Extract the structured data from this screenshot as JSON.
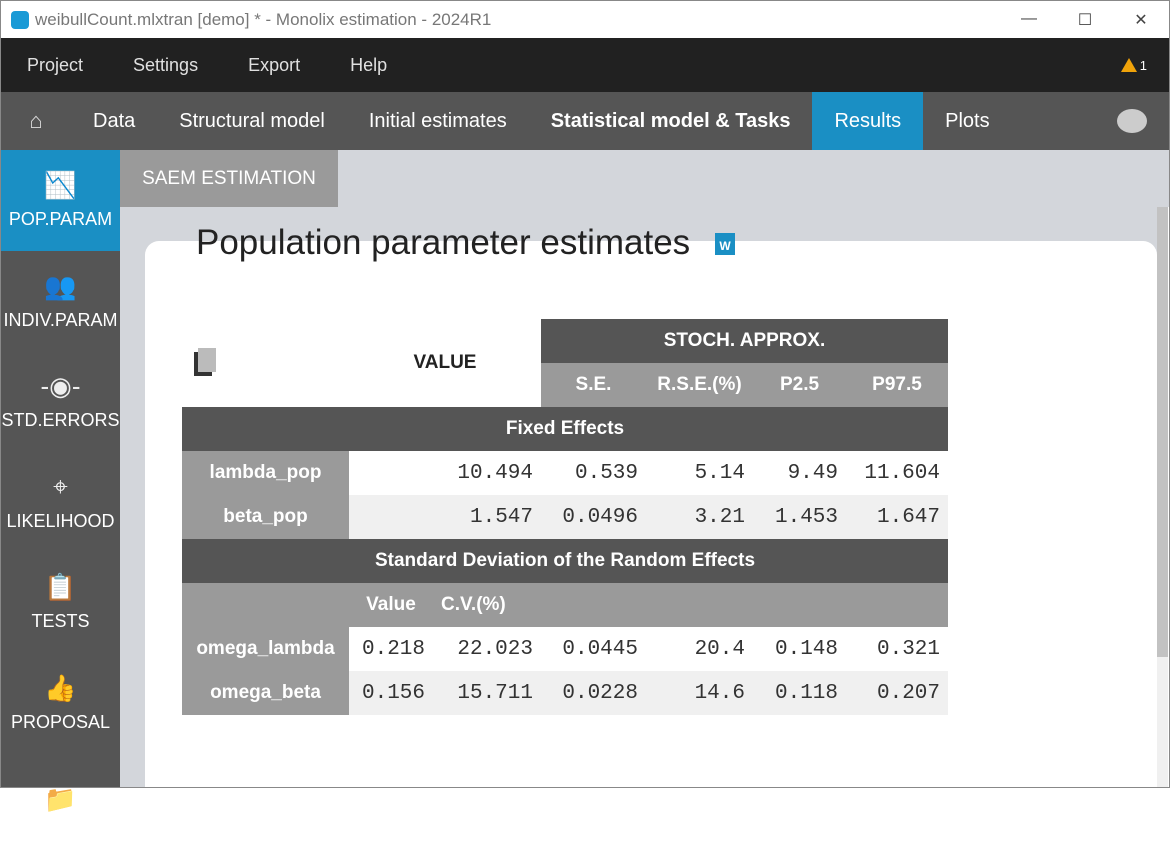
{
  "window": {
    "title": "weibullCount.mlxtran [demo] * - Monolix estimation - 2024R1",
    "controls": [
      "—",
      "☐",
      "✕"
    ]
  },
  "menu": [
    "Project",
    "Settings",
    "Export",
    "Help"
  ],
  "warning_count": "1",
  "nav": {
    "tabs": [
      "Data",
      "Structural model",
      "Initial estimates",
      "Statistical model & Tasks",
      "Results",
      "Plots"
    ],
    "active": "Results"
  },
  "sidebar": [
    {
      "label": "POP.PARAM",
      "icon": "chart-icon"
    },
    {
      "label": "INDIV.PARAM",
      "icon": "users-icon"
    },
    {
      "label": "STD.ERRORS",
      "icon": "errorbar-icon"
    },
    {
      "label": "LIKELIHOOD",
      "icon": "target-icon"
    },
    {
      "label": "TESTS",
      "icon": "clipboard-icon"
    },
    {
      "label": "PROPOSAL",
      "icon": "thumbs-up-icon"
    }
  ],
  "subtab": "SAEM ESTIMATION",
  "page_title": "Population parameter estimates",
  "table": {
    "value_header": "VALUE",
    "group_header": "STOCH. APPROX.",
    "cols": [
      "S.E.",
      "R.S.E.(%)",
      "P2.5",
      "P97.5"
    ],
    "fixed_title": "Fixed Effects",
    "fixed": [
      {
        "name": "lambda_pop",
        "value": "10.494",
        "se": "0.539",
        "rse": "5.14",
        "p2": "9.49",
        "p97": "11.604"
      },
      {
        "name": "beta_pop",
        "value": "1.547",
        "se": "0.0496",
        "rse": "3.21",
        "p2": "1.453",
        "p97": "1.647"
      }
    ],
    "random_title": "Standard Deviation of the Random Effects",
    "random_subcols": [
      "Value",
      "C.V.(%)"
    ],
    "random": [
      {
        "name": "omega_lambda",
        "value": "0.218",
        "cv": "22.023",
        "se": "0.0445",
        "rse": "20.4",
        "p2": "0.148",
        "p97": "0.321"
      },
      {
        "name": "omega_beta",
        "value": "0.156",
        "cv": "15.711",
        "se": "0.0228",
        "rse": "14.6",
        "p2": "0.118",
        "p97": "0.207"
      }
    ]
  }
}
